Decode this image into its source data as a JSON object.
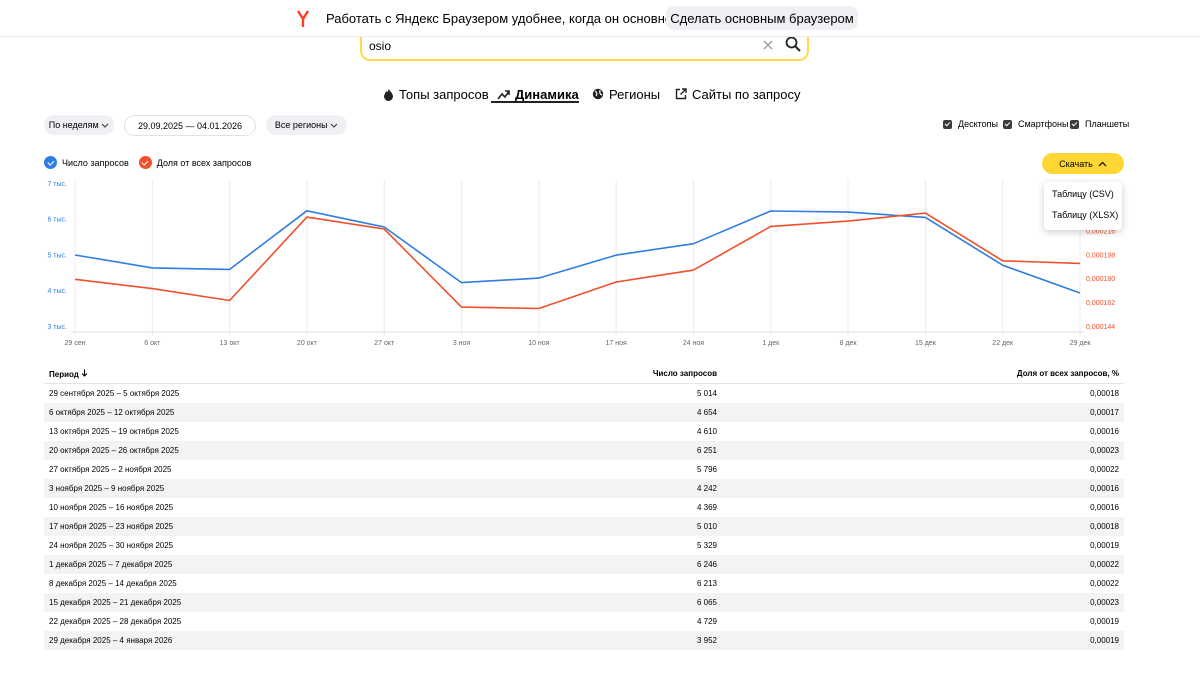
{
  "banner": {
    "text": "Работать с Яндекс Браузером удобнее, когда он основной",
    "button": "Сделать основным браузером"
  },
  "search": {
    "query": "osio"
  },
  "tabs": [
    "Топы запросов",
    "Динамика",
    "Регионы",
    "Сайты по запросу"
  ],
  "filters": {
    "period": "По неделям",
    "dates": "29.09.2025 — 04.01.2026",
    "regions": "Все регионы",
    "devices": [
      "Десктопы",
      "Смартфоны",
      "Планшеты"
    ]
  },
  "download": {
    "button": "Скачать",
    "options": [
      "Таблицу (CSV)",
      "Таблицу (XLSX)"
    ]
  },
  "chart_data": {
    "type": "line",
    "categories": [
      "29 сен",
      "6 окт",
      "13 окт",
      "20 окт",
      "27 окт",
      "3 ноя",
      "10 ноя",
      "17 ноя",
      "24 ноя",
      "1 дек",
      "8 дек",
      "15 дек",
      "22 дек",
      "29 дек"
    ],
    "series": [
      {
        "name": "Число запросов",
        "color": "#2f7de1",
        "values": [
          5014,
          4654,
          4610,
          6251,
          5796,
          4242,
          4369,
          5010,
          5329,
          6246,
          6213,
          6065,
          4729,
          3952
        ]
      },
      {
        "name": "Доля от всех запросов",
        "color": "#f0502a",
        "axis": "y2",
        "values": [
          0.00018,
          0.000173,
          0.000164,
          0.000227,
          0.000218,
          0.000159,
          0.000158,
          0.000178,
          0.000187,
          0.00022,
          0.000224,
          0.00023,
          0.000194,
          0.000192
        ]
      }
    ],
    "ylim": [
      3000,
      7000
    ],
    "yticks": [
      {
        "value": 3000,
        "label": "3 тыс."
      },
      {
        "value": 4000,
        "label": "4 тыс."
      },
      {
        "value": 5000,
        "label": "5 тыс."
      },
      {
        "value": 6000,
        "label": "6 тыс."
      },
      {
        "value": 7000,
        "label": "7 тыс."
      }
    ],
    "y2lim": [
      0.000144,
      0.000252
    ],
    "y2ticks": [
      {
        "value": 0.000144,
        "label": "0,000144"
      },
      {
        "value": 0.000162,
        "label": "0,000162"
      },
      {
        "value": 0.00018,
        "label": "0,000180"
      },
      {
        "value": 0.000198,
        "label": "0,000198"
      },
      {
        "value": 0.000216,
        "label": "0,000216"
      }
    ],
    "grid": true
  },
  "table": {
    "headers": [
      "Период",
      "Число запросов",
      "Доля от всех запросов, %"
    ],
    "rows": [
      [
        "29 сентября 2025 – 5 октября 2025",
        "5 014",
        "0,00018"
      ],
      [
        "6 октября 2025 – 12 октября 2025",
        "4 654",
        "0,00017"
      ],
      [
        "13 октября 2025 – 19 октября 2025",
        "4 610",
        "0,00016"
      ],
      [
        "20 октября 2025 – 26 октября 2025",
        "6 251",
        "0,00023"
      ],
      [
        "27 октября 2025 – 2 ноября 2025",
        "5 796",
        "0,00022"
      ],
      [
        "3 ноября 2025 – 9 ноября 2025",
        "4 242",
        "0,00016"
      ],
      [
        "10 ноября 2025 – 16 ноября 2025",
        "4 369",
        "0,00016"
      ],
      [
        "17 ноября 2025 – 23 ноября 2025",
        "5 010",
        "0,00018"
      ],
      [
        "24 ноября 2025 – 30 ноября 2025",
        "5 329",
        "0,00019"
      ],
      [
        "1 декабря 2025 – 7 декабря 2025",
        "6 246",
        "0,00022"
      ],
      [
        "8 декабря 2025 – 14 декабря 2025",
        "6 213",
        "0,00022"
      ],
      [
        "15 декабря 2025 – 21 декабря 2025",
        "6 065",
        "0,00023"
      ],
      [
        "22 декабря 2025 – 28 декабря 2025",
        "4 729",
        "0,00019"
      ],
      [
        "29 декабря 2025 – 4 января 2026",
        "3 952",
        "0,00019"
      ]
    ]
  }
}
